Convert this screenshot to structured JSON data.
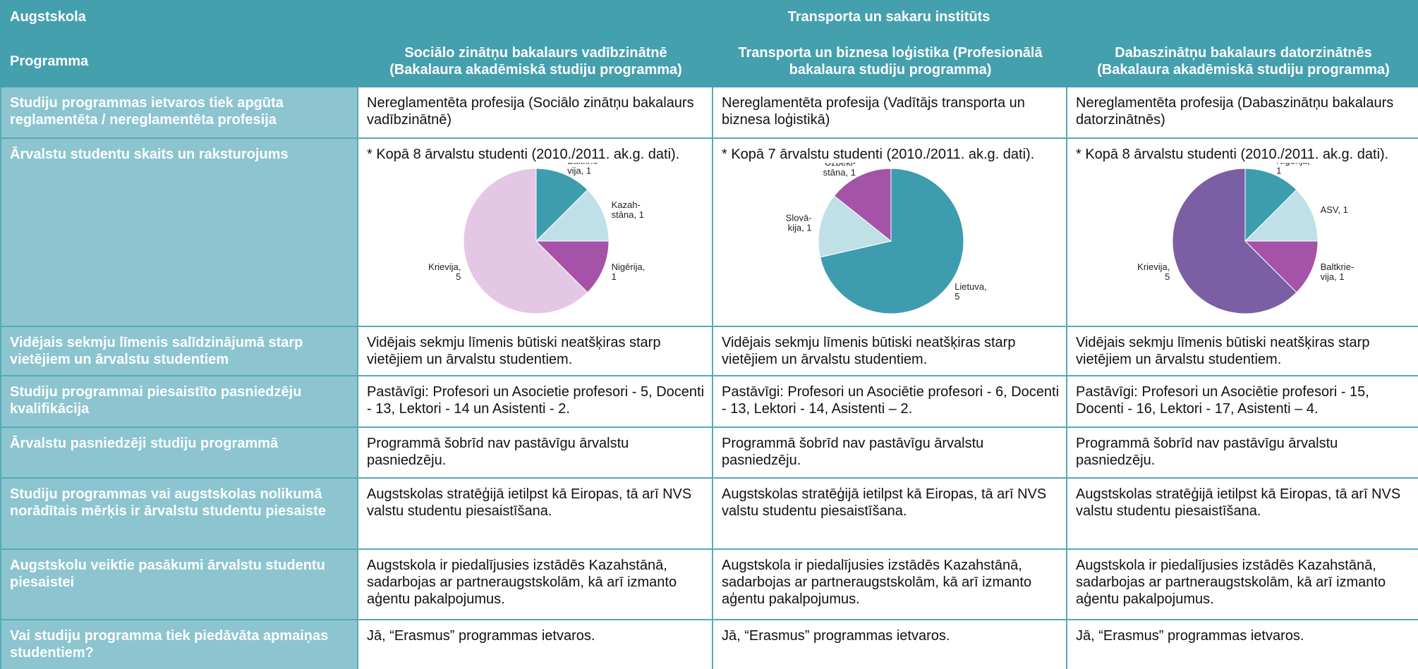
{
  "header": {
    "institution_label": "Augstskola",
    "institution": "Transporta un sakaru institūts",
    "programme_label": "Programma",
    "programmes": [
      [
        "Sociālo zinātņu bakalaurs vadībzinātnē",
        "(Bakalaura akadēmiskā studiju programma)"
      ],
      [
        "Transporta un biznesa loģistika (Profesionālā",
        "bakalaura studiju programma)"
      ],
      [
        "Dabaszinātņu bakalaurs datorzinātnēs",
        "(Bakalaura akadēmiskā studiju programma)"
      ]
    ]
  },
  "rows": [
    {
      "label": "Studiju programmas ietvaros tiek apgūta reglamentēta / nereglamentēta profesija",
      "cells": [
        "Nereglamentēta profesija (Sociālo zinātņu bakalaurs vadībzinātnē)",
        "Nereglamentēta profesija (Vadītājs transporta un biznesa loģistikā)",
        "Nereglamentēta profesija (Dabaszinātņu bakalaurs datorzinātnēs)"
      ]
    },
    {
      "label": "Ārvalstu studentu skaits un raksturojums",
      "cells": [
        {
          "text": "* Kopā 8 ārvalstu studenti (2010./2011. ak.g. dati).",
          "chart": {
            "type": "pie",
            "labels": [
              [
                "Baltkrie-",
                "vija, 1"
              ],
              [
                "Kazah-",
                "stāna, 1"
              ],
              [
                "Nigērija,",
                "1"
              ],
              [
                "Krievija,",
                "5"
              ]
            ],
            "values": [
              1,
              1,
              1,
              5
            ],
            "colors": [
              "#3d9cad",
              "#bfe0e6",
              "#a553a8",
              "#e4c7e4"
            ]
          }
        },
        {
          "text": "* Kopā 7 ārvalstu studenti (2010./2011. ak.g. dati).",
          "chart": {
            "type": "pie",
            "labels": [
              [
                "Lietuva,",
                "5"
              ],
              [
                "Slovā-",
                "kija, 1"
              ],
              [
                "Uzbeki-",
                "stāna, 1"
              ]
            ],
            "values": [
              5,
              1,
              1
            ],
            "colors": [
              "#3d9cad",
              "#bfe0e6",
              "#a553a8"
            ]
          }
        },
        {
          "text": "* Kopā 8 ārvalstu studenti (2010./2011. ak.g. dati).",
          "chart": {
            "type": "pie",
            "labels": [
              [
                "Nigērija,",
                "1"
              ],
              [
                "ASV, 1"
              ],
              [
                "Baltkrie-",
                "vija, 1"
              ],
              [
                "Krievija,",
                "5"
              ]
            ],
            "values": [
              1,
              1,
              1,
              5
            ],
            "colors": [
              "#3d9cad",
              "#bfe0e6",
              "#a553a8",
              "#7b5fa4"
            ]
          }
        }
      ]
    },
    {
      "label": "Vidējais sekmju līmenis salīdzinājumā starp vietējiem un ārvalstu studentiem",
      "cells": [
        "Vidējais sekmju līmenis būtiski neatšķiras starp vietējiem un ārvalstu studentiem.",
        "Vidējais sekmju līmenis būtiski neatšķiras starp vietējiem un ārvalstu studentiem.",
        "Vidējais sekmju līmenis būtiski neatšķiras starp vietējiem un ārvalstu studentiem."
      ]
    },
    {
      "label": "Studiju programmai piesaistīto pasniedzēju kvalifikācija",
      "cells": [
        "Pastāvīgi: Profesori un Asocietie profesori - 5, Docenti - 13, Lektori - 14 un Asistenti - 2.",
        "Pastāvīgi: Profesori un Asociētie profesori - 6, Docenti - 13, Lektori - 14, Asistenti – 2.",
        "Pastāvīgi: Profesori un Asociētie profesori - 15, Docenti - 16, Lektori - 17, Asistenti – 4."
      ]
    },
    {
      "label": "Ārvalstu pasniedzēji studiju programmā",
      "cells": [
        "Programmā šobrīd nav pastāvīgu ārvalstu pasniedzēju.",
        "Programmā šobrīd nav pastāvīgu ārvalstu pasniedzēju.",
        "Programmā šobrīd nav pastāvīgu ārvalstu pasniedzēju."
      ]
    },
    {
      "label": "Studiju programmas vai augstskolas nolikumā norādītais mērķis ir ārvalstu studentu piesaiste",
      "cells": [
        "Augstskolas stratēģijā ietilpst kā Eiropas, tā arī NVS valstu studentu piesaistīšana.",
        "Augstskolas stratēģijā ietilpst kā Eiropas, tā arī NVS valstu studentu piesaistīšana.",
        "Augstskolas stratēģijā ietilpst kā Eiropas, tā arī NVS valstu studentu piesaistīšana."
      ]
    },
    {
      "label": "Augstskolu veiktie pasākumi ārvalstu studentu piesaistei",
      "cells": [
        "Augstskola ir piedalījusies izstādēs Kazahstānā, sadarbojas ar partneraugstskolām, kā arī izmanto aģentu pakalpojumus.",
        "Augstskola ir piedalījusies izstādēs Kazahstānā, sadarbojas ar partneraugstskolām, kā arī izmanto aģentu pakalpojumus.",
        "Augstskola ir piedalījusies izstādēs Kazahstānā, sadarbojas ar partneraugstskolām, kā arī izmanto aģentu pakalpojumus."
      ]
    },
    {
      "label": "Vai studiju programma tiek piedāvāta apmaiņas studentiem?",
      "cells": [
        "Jā, “Erasmus” programmas ietvaros.",
        "Jā, “Erasmus” programmas ietvaros.",
        "Jā, “Erasmus” programmas ietvaros."
      ]
    }
  ]
}
